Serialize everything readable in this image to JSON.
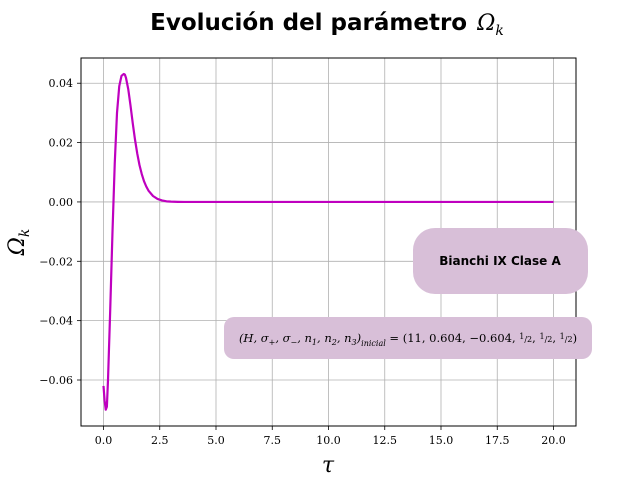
{
  "chart_data": {
    "type": "line",
    "title": "Evolución del parámetro",
    "title_math": "Ωk",
    "xlabel": "τ",
    "ylabel": "Ωk",
    "xlim": [
      -1.0,
      21.0
    ],
    "ylim": [
      -0.0755,
      0.0485
    ],
    "x_ticks": [
      0.0,
      2.5,
      5.0,
      7.5,
      10.0,
      12.5,
      15.0,
      17.5,
      20.0
    ],
    "x_tick_labels": [
      "0.0",
      "2.5",
      "5.0",
      "7.5",
      "10.0",
      "12.5",
      "15.0",
      "17.5",
      "20.0"
    ],
    "y_ticks": [
      -0.06,
      -0.04,
      -0.02,
      0.0,
      0.02,
      0.04
    ],
    "y_tick_labels": [
      "−0.06",
      "−0.04",
      "−0.02",
      "0.00",
      "0.02",
      "0.04"
    ],
    "grid": true,
    "series": [
      {
        "color": "#bf00bf",
        "x": [
          0.0,
          0.05,
          0.1,
          0.15,
          0.2,
          0.3,
          0.4,
          0.5,
          0.6,
          0.7,
          0.8,
          0.9,
          0.95,
          1.0,
          1.1,
          1.2,
          1.3,
          1.4,
          1.5,
          1.6,
          1.7,
          1.8,
          1.9,
          2.0,
          2.2,
          2.4,
          2.6,
          2.8,
          3.0,
          3.3,
          3.6,
          4.0,
          5.0,
          10.0,
          15.0,
          20.0
        ],
        "y": [
          -0.062,
          -0.067,
          -0.07,
          -0.069,
          -0.06,
          -0.036,
          -0.01,
          0.013,
          0.03,
          0.039,
          0.0425,
          0.0431,
          0.0429,
          0.0418,
          0.038,
          0.0325,
          0.0265,
          0.021,
          0.0163,
          0.0124,
          0.0094,
          0.007,
          0.0052,
          0.0038,
          0.002,
          0.001,
          0.0005,
          0.0002,
          0.0001,
          3e-05,
          0.0,
          0.0,
          0.0,
          0.0,
          0.0,
          0.0
        ]
      }
    ],
    "annotations": [
      {
        "text": "Bianchi IX Clase A",
        "style": "bold"
      },
      {
        "text": "(H, σ+, σ−, n1, n2, n3)inicial = (11, 0.604, −0.604, 1/2, 1/2, 1/2)",
        "style": "math"
      }
    ]
  },
  "annotation_box_color": "#d8bfd8",
  "grid_color": "#b0b0b0"
}
